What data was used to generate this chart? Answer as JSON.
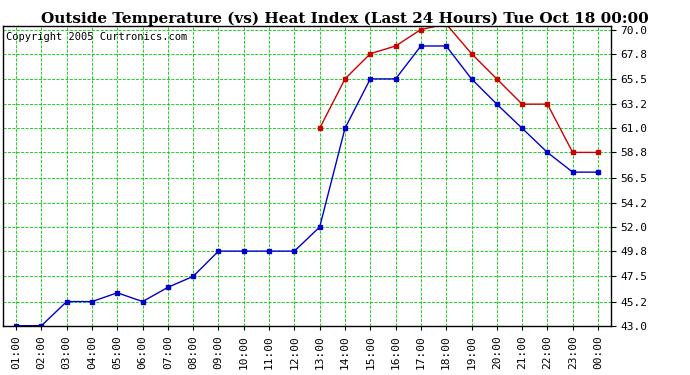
{
  "title": "Outside Temperature (vs) Heat Index (Last 24 Hours) Tue Oct 18 00:00",
  "copyright": "Copyright 2005 Curtronics.com",
  "background_color": "#ffffff",
  "plot_bg_color": "#ffffff",
  "grid_color": "#00cc00",
  "x_labels": [
    "01:00",
    "02:00",
    "03:00",
    "04:00",
    "05:00",
    "06:00",
    "07:00",
    "08:00",
    "09:00",
    "10:00",
    "11:00",
    "12:00",
    "13:00",
    "14:00",
    "15:00",
    "16:00",
    "17:00",
    "18:00",
    "19:00",
    "20:00",
    "21:00",
    "22:00",
    "23:00",
    "00:00"
  ],
  "y_ticks": [
    43.0,
    45.2,
    47.5,
    49.8,
    52.0,
    54.2,
    56.5,
    58.8,
    61.0,
    63.2,
    65.5,
    67.8,
    70.0
  ],
  "y_min": 43.0,
  "y_max": 70.0,
  "blue_line": [
    43.0,
    43.0,
    45.2,
    45.2,
    46.0,
    45.2,
    46.5,
    47.5,
    49.8,
    49.8,
    49.8,
    49.8,
    52.0,
    61.0,
    65.5,
    65.5,
    68.5,
    68.5,
    65.5,
    63.2,
    61.0,
    58.8,
    57.0,
    57.0
  ],
  "red_line": [
    null,
    null,
    null,
    null,
    null,
    null,
    null,
    null,
    null,
    null,
    null,
    null,
    61.0,
    65.5,
    67.8,
    68.5,
    70.0,
    70.5,
    67.8,
    65.5,
    63.2,
    63.2,
    58.8,
    58.8
  ],
  "blue_color": "#0000cc",
  "red_color": "#cc0000",
  "title_fontsize": 11,
  "tick_fontsize": 8,
  "copyright_fontsize": 7.5
}
